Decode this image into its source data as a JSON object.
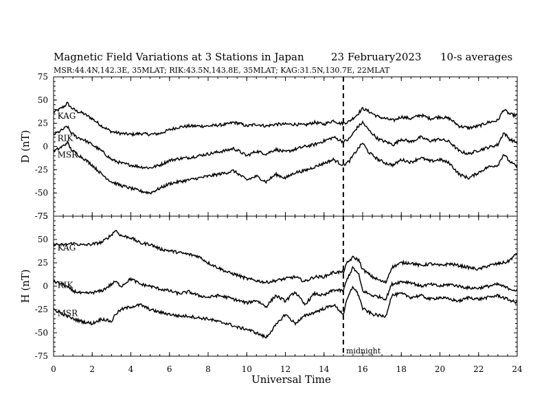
{
  "title": "Magnetic Field Variations at 3 Stations in Japan",
  "date": "23 February2023",
  "averaging": "10-s averages",
  "subtitle": "MSR:44.4N,142.3E, 35MLAT;  RIK:43.5N,143.8E, 35MLAT;  KAG:31.5N,130.7E, 22MLAT",
  "xlabel": "Universal Time",
  "midnight_label": "midnight",
  "colors": {
    "line": "#000000",
    "background": "#ffffff"
  },
  "chart_data": [
    {
      "type": "line",
      "panel": "D",
      "ylabel": "D (nT)",
      "xlim": [
        0,
        24
      ],
      "ylim": [
        -75,
        75
      ],
      "xticks": [
        "0",
        "2",
        "4",
        "6",
        "8",
        "10",
        "12",
        "14",
        "16",
        "18",
        "20",
        "22",
        "24"
      ],
      "yticks": [
        "75",
        "50",
        "25",
        "0",
        "-25",
        "-50",
        "-75"
      ],
      "vline": {
        "x": 15,
        "style": "dashed"
      },
      "series": [
        {
          "name": "KAG",
          "x": [
            0,
            0.3,
            0.6,
            0.7,
            0.9,
            1.2,
            1.5,
            2,
            2.5,
            3,
            3.5,
            4,
            4.5,
            5,
            5.5,
            6,
            6.5,
            7,
            7.5,
            8,
            8.5,
            9,
            9.3,
            9.6,
            10,
            10.5,
            11,
            11.5,
            12,
            12.5,
            13,
            13.5,
            14,
            14.5,
            14.8,
            15,
            15.3,
            15.7,
            16,
            16.3,
            16.8,
            17.2,
            17.6,
            18,
            18.5,
            19,
            19.5,
            20,
            20.5,
            21,
            21.5,
            22,
            22.5,
            23,
            23.3,
            23.6,
            24
          ],
          "values": [
            37,
            40,
            44,
            47,
            42,
            38,
            36,
            30,
            22,
            16,
            14,
            13,
            14,
            13,
            14,
            18,
            21,
            22,
            22,
            22,
            23,
            24,
            26,
            25,
            22,
            24,
            22,
            24,
            24,
            24,
            23,
            26,
            24,
            28,
            25,
            25,
            27,
            34,
            41,
            38,
            32,
            30,
            28,
            32,
            30,
            34,
            30,
            32,
            30,
            22,
            20,
            22,
            26,
            28,
            40,
            35,
            33
          ]
        },
        {
          "name": "RIK",
          "x": [
            0,
            0.3,
            0.6,
            0.7,
            0.9,
            1.2,
            1.5,
            2,
            2.5,
            3,
            3.5,
            4,
            4.5,
            5,
            5.5,
            6,
            6.5,
            7,
            7.5,
            8,
            8.5,
            9,
            9.3,
            9.6,
            10,
            10.5,
            11,
            11.5,
            12,
            12.5,
            13,
            13.5,
            14,
            14.5,
            14.8,
            15,
            15.3,
            15.7,
            16,
            16.3,
            16.8,
            17.2,
            17.6,
            18,
            18.5,
            19,
            19.5,
            20,
            20.5,
            21,
            21.5,
            22,
            22.5,
            23,
            23.3,
            23.6,
            24
          ],
          "values": [
            13,
            16,
            20,
            22,
            15,
            10,
            8,
            2,
            -5,
            -14,
            -18,
            -20,
            -22,
            -23,
            -20,
            -15,
            -13,
            -12,
            -10,
            -8,
            -6,
            -4,
            -2,
            -5,
            -10,
            -5,
            -8,
            -3,
            -6,
            -3,
            0,
            2,
            6,
            10,
            7,
            5,
            8,
            20,
            26,
            18,
            8,
            5,
            2,
            8,
            5,
            10,
            6,
            8,
            5,
            -5,
            -8,
            -4,
            -1,
            2,
            15,
            8,
            4
          ]
        },
        {
          "name": "MSR",
          "x": [
            0,
            0.3,
            0.6,
            0.7,
            0.9,
            1.2,
            1.5,
            2,
            2.5,
            3,
            3.5,
            4,
            4.5,
            5,
            5.5,
            6,
            6.5,
            7,
            7.5,
            8,
            8.5,
            9,
            9.3,
            9.6,
            10,
            10.5,
            11,
            11.5,
            12,
            12.5,
            13,
            13.5,
            14,
            14.5,
            14.8,
            15,
            15.3,
            15.7,
            16,
            16.3,
            16.8,
            17.2,
            17.6,
            18,
            18.5,
            19,
            19.5,
            20,
            20.5,
            21,
            21.5,
            22,
            22.5,
            23,
            23.3,
            23.6,
            24
          ],
          "values": [
            -5,
            -2,
            2,
            5,
            -3,
            -8,
            -12,
            -20,
            -30,
            -38,
            -42,
            -45,
            -48,
            -50,
            -45,
            -40,
            -38,
            -36,
            -34,
            -32,
            -30,
            -28,
            -26,
            -30,
            -36,
            -32,
            -38,
            -30,
            -34,
            -28,
            -26,
            -22,
            -18,
            -14,
            -18,
            -20,
            -16,
            -4,
            4,
            -6,
            -14,
            -18,
            -20,
            -14,
            -17,
            -12,
            -16,
            -14,
            -18,
            -30,
            -34,
            -28,
            -22,
            -20,
            -8,
            -16,
            -22
          ]
        }
      ]
    },
    {
      "type": "line",
      "panel": "H",
      "ylabel": "H (nT)",
      "xlim": [
        0,
        24
      ],
      "ylim": [
        -75,
        75
      ],
      "xticks": [
        "0",
        "2",
        "4",
        "6",
        "8",
        "10",
        "12",
        "14",
        "16",
        "18",
        "20",
        "22",
        "24"
      ],
      "yticks": [
        "75",
        "50",
        "25",
        "0",
        "-25",
        "-50",
        "-75"
      ],
      "vline": {
        "x": 15,
        "style": "dashed"
      },
      "series": [
        {
          "name": "KAG",
          "x": [
            0,
            0.5,
            1,
            1.5,
            2,
            2.5,
            3,
            3.2,
            3.5,
            4,
            4.5,
            5,
            5.5,
            6,
            6.5,
            7,
            7.5,
            8,
            8.5,
            9,
            9.5,
            10,
            10.5,
            11,
            11.5,
            12,
            12.5,
            13,
            13.5,
            14,
            14.5,
            15,
            15.2,
            15.5,
            15.8,
            16,
            16.5,
            17,
            17.2,
            17.5,
            18,
            18.5,
            19,
            19.5,
            20,
            20.5,
            21,
            21.5,
            22,
            22.5,
            23,
            23.5,
            24
          ],
          "values": [
            45,
            44,
            46,
            44,
            45,
            47,
            55,
            60,
            54,
            52,
            46,
            45,
            40,
            38,
            36,
            34,
            32,
            25,
            20,
            15,
            12,
            8,
            6,
            4,
            6,
            8,
            10,
            5,
            10,
            10,
            15,
            15,
            25,
            31,
            28,
            18,
            10,
            5,
            4,
            20,
            25,
            25,
            22,
            24,
            22,
            24,
            22,
            20,
            18,
            22,
            24,
            26,
            35
          ]
        },
        {
          "name": "RIK",
          "x": [
            0,
            0.5,
            1,
            1.5,
            2,
            2.5,
            3,
            3.2,
            3.5,
            4,
            4.5,
            5,
            5.5,
            6,
            6.5,
            7,
            7.5,
            8,
            8.5,
            9,
            9.5,
            10,
            10.5,
            11,
            11.5,
            12,
            12.5,
            13,
            13.5,
            14,
            14.5,
            15,
            15.2,
            15.5,
            15.8,
            16,
            16.5,
            17,
            17.2,
            17.5,
            18,
            18.5,
            19,
            19.5,
            20,
            20.5,
            21,
            21.5,
            22,
            22.5,
            23,
            23.5,
            24
          ],
          "values": [
            5,
            2,
            -5,
            -8,
            -7,
            -5,
            2,
            5,
            0,
            8,
            2,
            0,
            -3,
            -5,
            -8,
            -6,
            -10,
            -12,
            -10,
            -12,
            -15,
            -18,
            -15,
            -22,
            -10,
            -16,
            -6,
            -20,
            -8,
            -10,
            -4,
            -5,
            8,
            20,
            12,
            -5,
            -10,
            -12,
            -14,
            2,
            5,
            4,
            0,
            2,
            0,
            2,
            0,
            -2,
            -2,
            0,
            2,
            -2,
            -5
          ]
        },
        {
          "name": "MSR",
          "x": [
            0,
            0.5,
            1,
            1.5,
            2,
            2.5,
            3,
            3.2,
            3.5,
            4,
            4.5,
            5,
            5.5,
            6,
            6.5,
            7,
            7.5,
            8,
            8.5,
            9,
            9.5,
            10,
            10.5,
            11,
            11.5,
            12,
            12.5,
            13,
            13.5,
            14,
            14.5,
            15,
            15.2,
            15.5,
            15.8,
            16,
            16.5,
            17,
            17.2,
            17.5,
            18,
            18.5,
            19,
            19.5,
            20,
            20.5,
            21,
            21.5,
            22,
            22.5,
            23,
            23.5,
            24
          ],
          "values": [
            -25,
            -30,
            -35,
            -38,
            -40,
            -35,
            -38,
            -30,
            -25,
            -22,
            -20,
            -25,
            -28,
            -30,
            -32,
            -32,
            -34,
            -35,
            -38,
            -40,
            -44,
            -46,
            -50,
            -55,
            -42,
            -30,
            -40,
            -32,
            -28,
            -24,
            -20,
            -30,
            -14,
            0,
            -10,
            -24,
            -30,
            -32,
            -32,
            -10,
            -8,
            -12,
            -10,
            -14,
            -12,
            -14,
            -16,
            -12,
            -14,
            -12,
            -10,
            -14,
            -18
          ]
        }
      ]
    }
  ]
}
